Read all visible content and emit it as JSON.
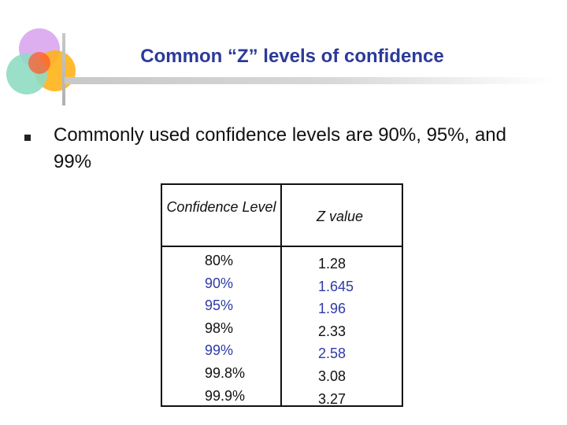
{
  "slide": {
    "title": "Common “Z” levels of confidence",
    "bullet": "Commonly used confidence levels are 90%, 95%, and 99%"
  },
  "table": {
    "headers": [
      "Confidence Level",
      "Z value"
    ],
    "rows": [
      {
        "level": "80%",
        "z": "1.28",
        "highlight": false
      },
      {
        "level": "90%",
        "z": "1.645",
        "highlight": true
      },
      {
        "level": "95%",
        "z": "1.96",
        "highlight": true
      },
      {
        "level": "98%",
        "z": "2.33",
        "highlight": false
      },
      {
        "level": "99%",
        "z": "2.58",
        "highlight": true
      },
      {
        "level": "99.8%",
        "z": "3.08",
        "highlight": false
      },
      {
        "level": "99.9%",
        "z": "3.27",
        "highlight": false
      }
    ]
  },
  "colors": {
    "title": "#2b3a9a",
    "highlight": "#2e3aa8",
    "normal": "#111111"
  }
}
